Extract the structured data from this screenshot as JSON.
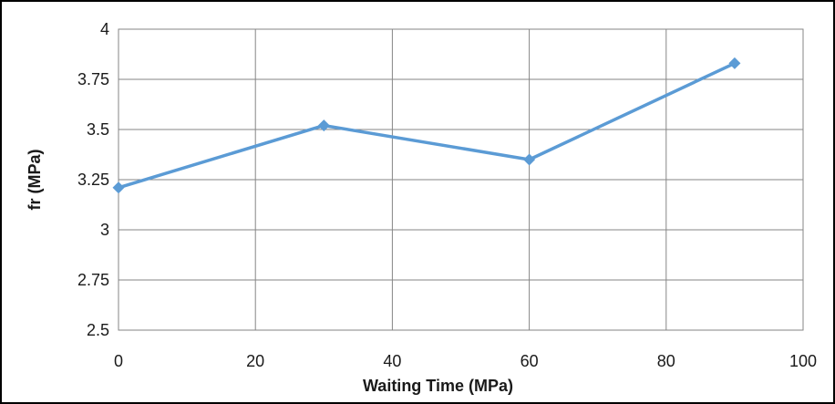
{
  "chart_data": {
    "type": "line",
    "title": "",
    "xlabel": "Waiting Time (MPa)",
    "ylabel": "fr (MPa)",
    "xlim": [
      0,
      100
    ],
    "ylim": [
      2.5,
      4
    ],
    "x_ticks": [
      0,
      20,
      40,
      60,
      80,
      100
    ],
    "y_ticks": [
      2.5,
      2.75,
      3,
      3.25,
      3.5,
      3.75,
      4
    ],
    "x_tick_labels": [
      "0",
      "20",
      "40",
      "60",
      "80",
      "100"
    ],
    "y_tick_labels": [
      "2.5",
      "2.75",
      "3",
      "3.25",
      "3.5",
      "3.75",
      "4"
    ],
    "grid": true,
    "legend": "none",
    "series": [
      {
        "color": "#5b9bd5",
        "marker": "diamond",
        "x": [
          0,
          30,
          60,
          90
        ],
        "y": [
          3.21,
          3.52,
          3.35,
          3.83
        ]
      }
    ]
  }
}
